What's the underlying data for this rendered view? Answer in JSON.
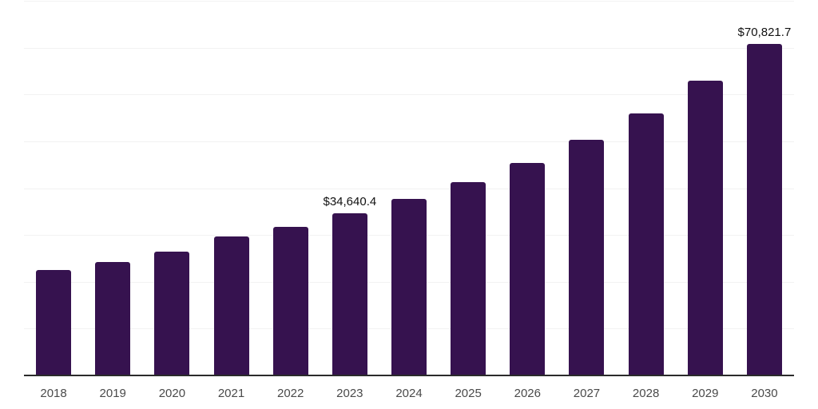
{
  "chart_data": {
    "type": "bar",
    "title": "",
    "xlabel": "",
    "ylabel": "",
    "categories": [
      "2018",
      "2019",
      "2020",
      "2021",
      "2022",
      "2023",
      "2024",
      "2025",
      "2026",
      "2027",
      "2028",
      "2029",
      "2030"
    ],
    "values": [
      22500,
      24300,
      26500,
      29600,
      31700,
      34640.4,
      37700,
      41300,
      45400,
      50400,
      56000,
      62900,
      70821.7
    ],
    "point_labels": [
      "",
      "",
      "",
      "",
      "",
      "$34,640.4",
      "",
      "",
      "",
      "",
      "",
      "",
      "$70,821.7"
    ],
    "ylim": [
      0,
      80000
    ],
    "gridline_step": 10000,
    "grid": "horizontal",
    "legend": "none",
    "colors": {
      "bar": "#36124F",
      "gridline": "#F2F2F2",
      "axis": "#2B2B2B",
      "tick_label": "#4A4A4A",
      "data_label": "#111111",
      "background": "#FFFFFF"
    }
  }
}
